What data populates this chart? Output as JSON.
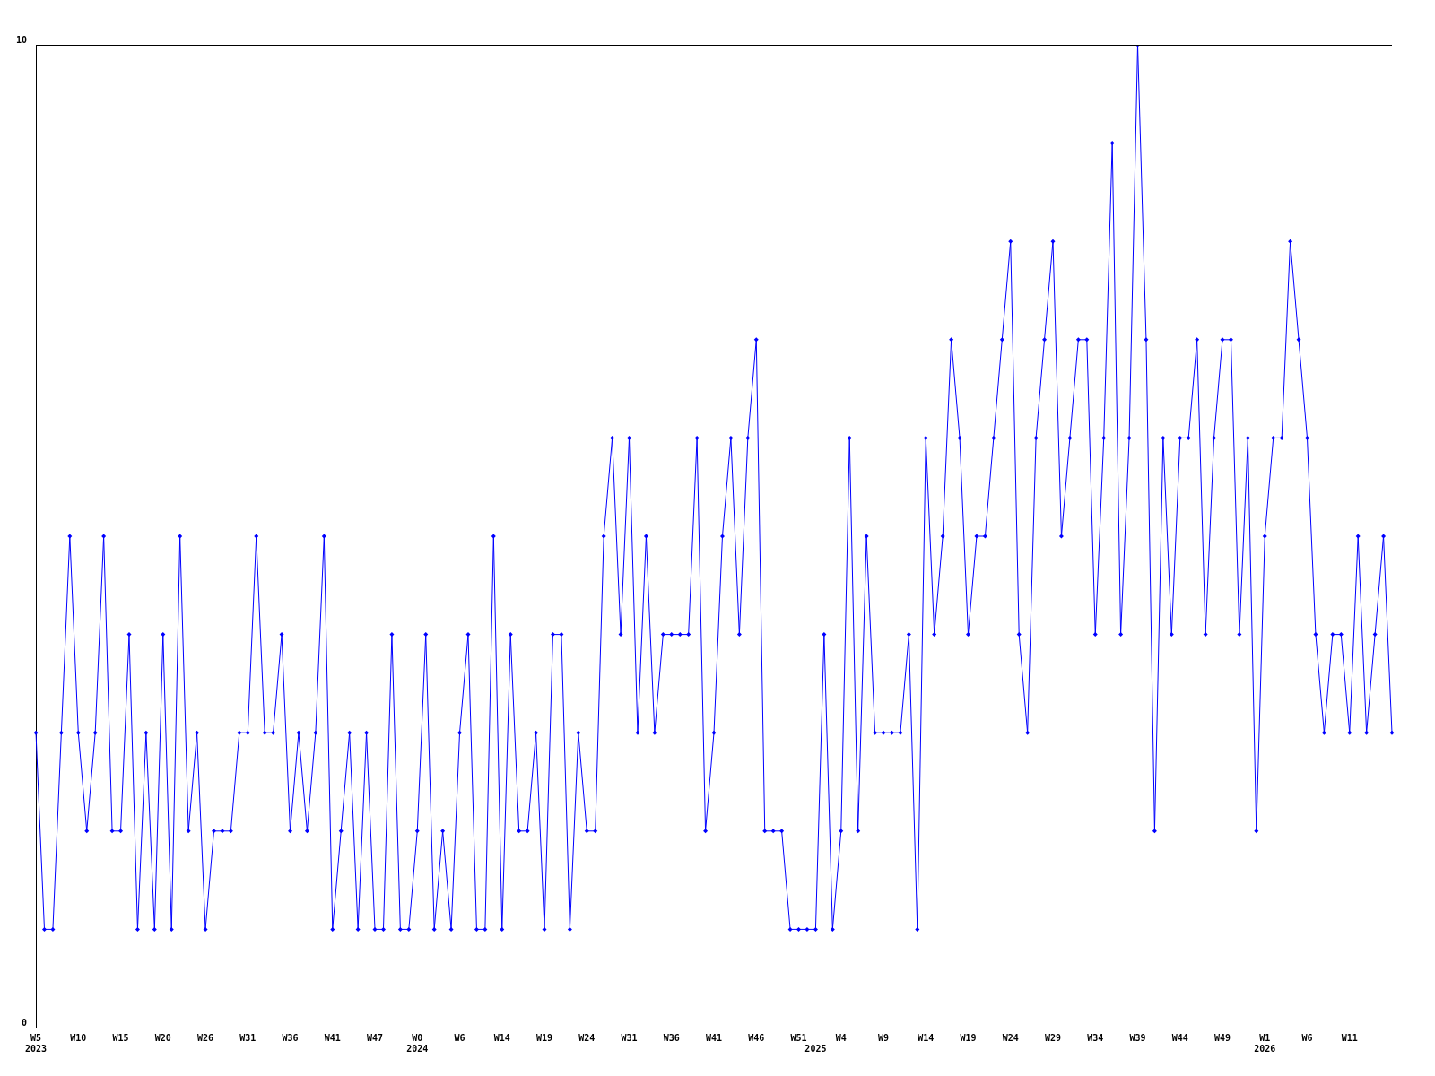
{
  "chart_data": {
    "type": "line",
    "color": "#0000ff",
    "marker": "diamond",
    "ylim": [
      0,
      10
    ],
    "yticks": [
      0,
      10
    ],
    "legend": false,
    "categories": [
      "W5\n2023",
      null,
      null,
      null,
      null,
      "W10",
      null,
      null,
      null,
      null,
      "W15",
      null,
      null,
      null,
      null,
      "W20",
      null,
      null,
      null,
      null,
      "W26",
      null,
      null,
      null,
      null,
      "W31",
      null,
      null,
      null,
      null,
      "W36",
      null,
      null,
      null,
      null,
      "W41",
      null,
      null,
      null,
      null,
      "W47",
      null,
      null,
      null,
      null,
      "W0\n2024",
      null,
      null,
      null,
      null,
      "W6",
      null,
      null,
      null,
      null,
      "W14",
      null,
      null,
      null,
      null,
      "W19",
      null,
      null,
      null,
      null,
      "W24",
      null,
      null,
      null,
      null,
      "W31",
      null,
      null,
      null,
      null,
      "W36",
      null,
      null,
      null,
      null,
      "W41",
      null,
      null,
      null,
      null,
      "W46",
      null,
      null,
      null,
      null,
      "W51",
      null,
      "\n2025",
      null,
      null,
      "W4",
      null,
      null,
      null,
      null,
      "W9",
      null,
      null,
      null,
      null,
      "W14",
      null,
      null,
      null,
      null,
      "W19",
      null,
      null,
      null,
      null,
      "W24",
      null,
      null,
      null,
      null,
      "W29",
      null,
      null,
      null,
      null,
      "W34",
      null,
      null,
      null,
      null,
      "W39",
      null,
      null,
      null,
      null,
      "W44",
      null,
      null,
      null,
      null,
      "W49",
      null,
      null,
      null,
      null,
      "W1\n2026",
      null,
      null,
      null,
      null,
      "W6",
      null,
      null,
      null,
      null,
      "W11",
      null,
      null,
      null,
      null,
      null
    ],
    "values": [
      3,
      1,
      1,
      3,
      5,
      3,
      2,
      3,
      5,
      2,
      2,
      4,
      1,
      3,
      1,
      4,
      1,
      5,
      2,
      3,
      1,
      2,
      2,
      2,
      3,
      3,
      5,
      3,
      3,
      4,
      2,
      3,
      2,
      3,
      5,
      1,
      2,
      3,
      1,
      3,
      1,
      1,
      4,
      1,
      1,
      2,
      4,
      1,
      2,
      1,
      3,
      4,
      1,
      1,
      5,
      1,
      4,
      2,
      2,
      3,
      1,
      4,
      4,
      1,
      3,
      2,
      2,
      5,
      6,
      4,
      6,
      3,
      5,
      3,
      4,
      4,
      4,
      4,
      6,
      2,
      3,
      5,
      6,
      4,
      6,
      7,
      2,
      2,
      2,
      1,
      1,
      1,
      1,
      4,
      1,
      2,
      6,
      2,
      5,
      3,
      3,
      3,
      3,
      4,
      1,
      6,
      4,
      5,
      7,
      6,
      4,
      5,
      5,
      6,
      7,
      8,
      4,
      3,
      6,
      7,
      8,
      5,
      6,
      7,
      7,
      4,
      6,
      9,
      4,
      6,
      10,
      7,
      2,
      6,
      4,
      6,
      6,
      7,
      4,
      6,
      7,
      7,
      4,
      6,
      2,
      5,
      6,
      6,
      8,
      7,
      6,
      4,
      3,
      4,
      4,
      3,
      5,
      3,
      4,
      5,
      3
    ]
  }
}
